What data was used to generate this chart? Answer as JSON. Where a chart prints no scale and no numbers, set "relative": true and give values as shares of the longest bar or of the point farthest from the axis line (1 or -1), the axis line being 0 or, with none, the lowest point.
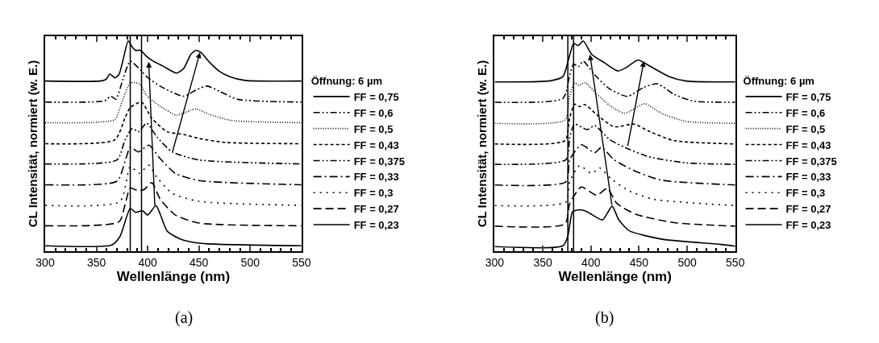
{
  "chart_data": [
    {
      "type": "line",
      "relative": true,
      "xlabel": "Wellenlänge (nm)",
      "ylabel": "CL Intensität, normiert (w. E.)",
      "legend_title": "Öffnung: 6 µm",
      "legend": "right",
      "annotations": [
        "(a)"
      ],
      "xlim": [
        300,
        550
      ],
      "xticks": [
        300,
        350,
        400,
        450,
        500,
        550
      ],
      "ref_lines": [
        {
          "axis": "x",
          "value": 383,
          "color": "#000000"
        },
        {
          "axis": "x",
          "value": 394,
          "color": "#000000"
        }
      ],
      "series": [
        {
          "name": "FF = 0,75",
          "color": "#000000",
          "line_style": "solid",
          "x": [
            300,
            355,
            360,
            363,
            368,
            372,
            376,
            381,
            385,
            388,
            393,
            399,
            405,
            415,
            428,
            435,
            442,
            447,
            452,
            460,
            470,
            480,
            495,
            550
          ],
          "values": [
            0.809,
            0.81,
            0.82,
            0.843,
            0.824,
            0.84,
            0.91,
            1.0,
            0.97,
            0.955,
            0.955,
            0.926,
            0.905,
            0.88,
            0.847,
            0.868,
            0.935,
            0.955,
            0.945,
            0.9,
            0.855,
            0.83,
            0.812,
            0.809
          ]
        },
        {
          "name": "FF = 0,6",
          "color": "#000000",
          "line_style": "dashdotdot",
          "x": [
            300,
            358,
            364,
            369,
            376,
            383,
            394,
            399,
            412,
            435,
            447,
            458,
            470,
            488,
            550
          ],
          "values": [
            0.709,
            0.715,
            0.737,
            0.722,
            0.82,
            0.903,
            0.856,
            0.83,
            0.785,
            0.737,
            0.766,
            0.785,
            0.76,
            0.722,
            0.709
          ]
        },
        {
          "name": "FF = 0,5",
          "color": "#000000",
          "line_style": "dotted",
          "x": [
            300,
            368,
            373,
            383,
            392,
            399,
            412,
            428,
            442,
            447,
            460,
            481,
            550
          ],
          "values": [
            0.611,
            0.626,
            0.683,
            0.8,
            0.796,
            0.74,
            0.69,
            0.647,
            0.67,
            0.677,
            0.651,
            0.622,
            0.611
          ]
        },
        {
          "name": "FF = 0,43",
          "color": "#000000",
          "line_style": "shortdash",
          "x": [
            300,
            368,
            378,
            383,
            394,
            404,
            419,
            435,
            450,
            476,
            550
          ],
          "values": [
            0.511,
            0.53,
            0.635,
            0.683,
            0.709,
            0.632,
            0.568,
            0.555,
            0.536,
            0.517,
            0.511
          ]
        },
        {
          "name": "FF = 0,375",
          "color": "#000000",
          "line_style": "dashdotdot",
          "x": [
            300,
            370,
            378,
            385,
            391,
            399,
            409,
            424,
            450,
            550
          ],
          "values": [
            0.415,
            0.434,
            0.53,
            0.584,
            0.568,
            0.609,
            0.543,
            0.472,
            0.434,
            0.415
          ]
        },
        {
          "name": "FF = 0,33",
          "color": "#000000",
          "line_style": "dashdot",
          "x": [
            300,
            370,
            378,
            383,
            391,
            401,
            412,
            427,
            450,
            550
          ],
          "values": [
            0.316,
            0.333,
            0.428,
            0.494,
            0.472,
            0.504,
            0.441,
            0.37,
            0.336,
            0.316
          ]
        },
        {
          "name": "FF = 0,3",
          "color": "#000000",
          "line_style": "sparsedot",
          "x": [
            300,
            373,
            383,
            392,
            401,
            409,
            424,
            450,
            550
          ],
          "values": [
            0.218,
            0.237,
            0.402,
            0.37,
            0.409,
            0.351,
            0.275,
            0.237,
            0.218
          ]
        },
        {
          "name": "FF = 0,27",
          "color": "#000000",
          "line_style": "dashed",
          "x": [
            300,
            372,
            378,
            383,
            391,
            397,
            404,
            412,
            427,
            450,
            550
          ],
          "values": [
            0.121,
            0.14,
            0.223,
            0.3,
            0.287,
            0.295,
            0.326,
            0.249,
            0.172,
            0.134,
            0.121
          ]
        },
        {
          "name": "FF = 0,23",
          "color": "#000000",
          "line_style": "solid",
          "x": [
            300,
            365,
            373,
            383,
            388,
            395,
            400,
            408,
            412,
            419,
            432,
            450,
            550
          ],
          "values": [
            0.026,
            0.03,
            0.07,
            0.204,
            0.185,
            0.192,
            0.172,
            0.217,
            0.179,
            0.096,
            0.057,
            0.038,
            0.026
          ]
        }
      ]
    },
    {
      "type": "line",
      "relative": true,
      "xlabel": "Wellenlänge (nm)",
      "ylabel": "CL Intensität, normiert (w. E.)",
      "legend_title": "Öffnung: 6 µm",
      "legend": "right",
      "annotations": [
        "(b)"
      ],
      "xlim": [
        300,
        550
      ],
      "xticks": [
        300,
        350,
        400,
        450,
        500,
        550
      ],
      "ref_lines": [
        {
          "axis": "x",
          "value": 376,
          "color": "#000000"
        },
        {
          "axis": "x",
          "value": 382,
          "color": "#000000"
        }
      ],
      "series": [
        {
          "name": "FF = 0,75",
          "color": "#000000",
          "line_style": "solid",
          "x": [
            300,
            358,
            371,
            377,
            382,
            387,
            392,
            401,
            414,
            428,
            437,
            449,
            460,
            481,
            499,
            550
          ],
          "values": [
            0.805,
            0.81,
            0.831,
            0.916,
            0.987,
            0.978,
            1.0,
            0.935,
            0.896,
            0.857,
            0.874,
            0.909,
            0.883,
            0.831,
            0.809,
            0.805
          ]
        },
        {
          "name": "FF = 0,6",
          "color": "#000000",
          "line_style": "dashdotdot",
          "x": [
            300,
            371,
            378,
            382,
            387,
            392,
            404,
            419,
            438,
            455,
            469,
            486,
            506,
            550
          ],
          "values": [
            0.708,
            0.727,
            0.838,
            0.89,
            0.877,
            0.903,
            0.838,
            0.773,
            0.736,
            0.779,
            0.796,
            0.747,
            0.714,
            0.708
          ]
        },
        {
          "name": "FF = 0,5",
          "color": "#000000",
          "line_style": "dotted",
          "x": [
            300,
            373,
            378,
            383,
            387,
            394,
            406,
            419,
            435,
            456,
            473,
            499,
            550
          ],
          "values": [
            0.608,
            0.624,
            0.74,
            0.801,
            0.788,
            0.801,
            0.747,
            0.695,
            0.656,
            0.701,
            0.656,
            0.617,
            0.608
          ]
        },
        {
          "name": "FF = 0,43",
          "color": "#000000",
          "line_style": "shortdash",
          "x": [
            300,
            373,
            378,
            383,
            388,
            394,
            406,
            424,
            445,
            460,
            486,
            550
          ],
          "values": [
            0.51,
            0.526,
            0.636,
            0.699,
            0.688,
            0.697,
            0.649,
            0.592,
            0.604,
            0.571,
            0.526,
            0.51
          ]
        },
        {
          "name": "FF = 0,375",
          "color": "#000000",
          "line_style": "dashdotdot",
          "x": [
            300,
            374,
            378,
            383,
            396,
            404,
            419,
            435,
            460,
            499,
            550
          ],
          "values": [
            0.413,
            0.435,
            0.539,
            0.604,
            0.578,
            0.597,
            0.532,
            0.494,
            0.449,
            0.42,
            0.413
          ]
        },
        {
          "name": "FF = 0,33",
          "color": "#000000",
          "line_style": "dashdot",
          "x": [
            300,
            374,
            378,
            390,
            404,
            411,
            424,
            445,
            473,
            550
          ],
          "values": [
            0.315,
            0.33,
            0.435,
            0.506,
            0.468,
            0.494,
            0.435,
            0.383,
            0.338,
            0.315
          ]
        },
        {
          "name": "FF = 0,3",
          "color": "#000000",
          "line_style": "sparsedot",
          "x": [
            300,
            374,
            378,
            388,
            401,
            409,
            421,
            440,
            465,
            550
          ],
          "values": [
            0.217,
            0.234,
            0.331,
            0.406,
            0.37,
            0.396,
            0.344,
            0.286,
            0.247,
            0.217
          ]
        },
        {
          "name": "FF = 0,27",
          "color": "#000000",
          "line_style": "dashed",
          "x": [
            300,
            373,
            378,
            390,
            406,
            417,
            427,
            447,
            486,
            550
          ],
          "values": [
            0.119,
            0.13,
            0.227,
            0.305,
            0.266,
            0.299,
            0.227,
            0.175,
            0.136,
            0.119
          ]
        },
        {
          "name": "FF = 0,23",
          "color": "#000000",
          "line_style": "solid",
          "x": [
            300,
            371,
            376,
            381,
            388,
            396,
            412,
            422,
            429,
            440,
            473,
            535,
            550
          ],
          "values": [
            0.022,
            0.026,
            0.071,
            0.188,
            0.197,
            0.188,
            0.149,
            0.214,
            0.149,
            0.097,
            0.058,
            0.032,
            0.024
          ]
        }
      ]
    }
  ]
}
